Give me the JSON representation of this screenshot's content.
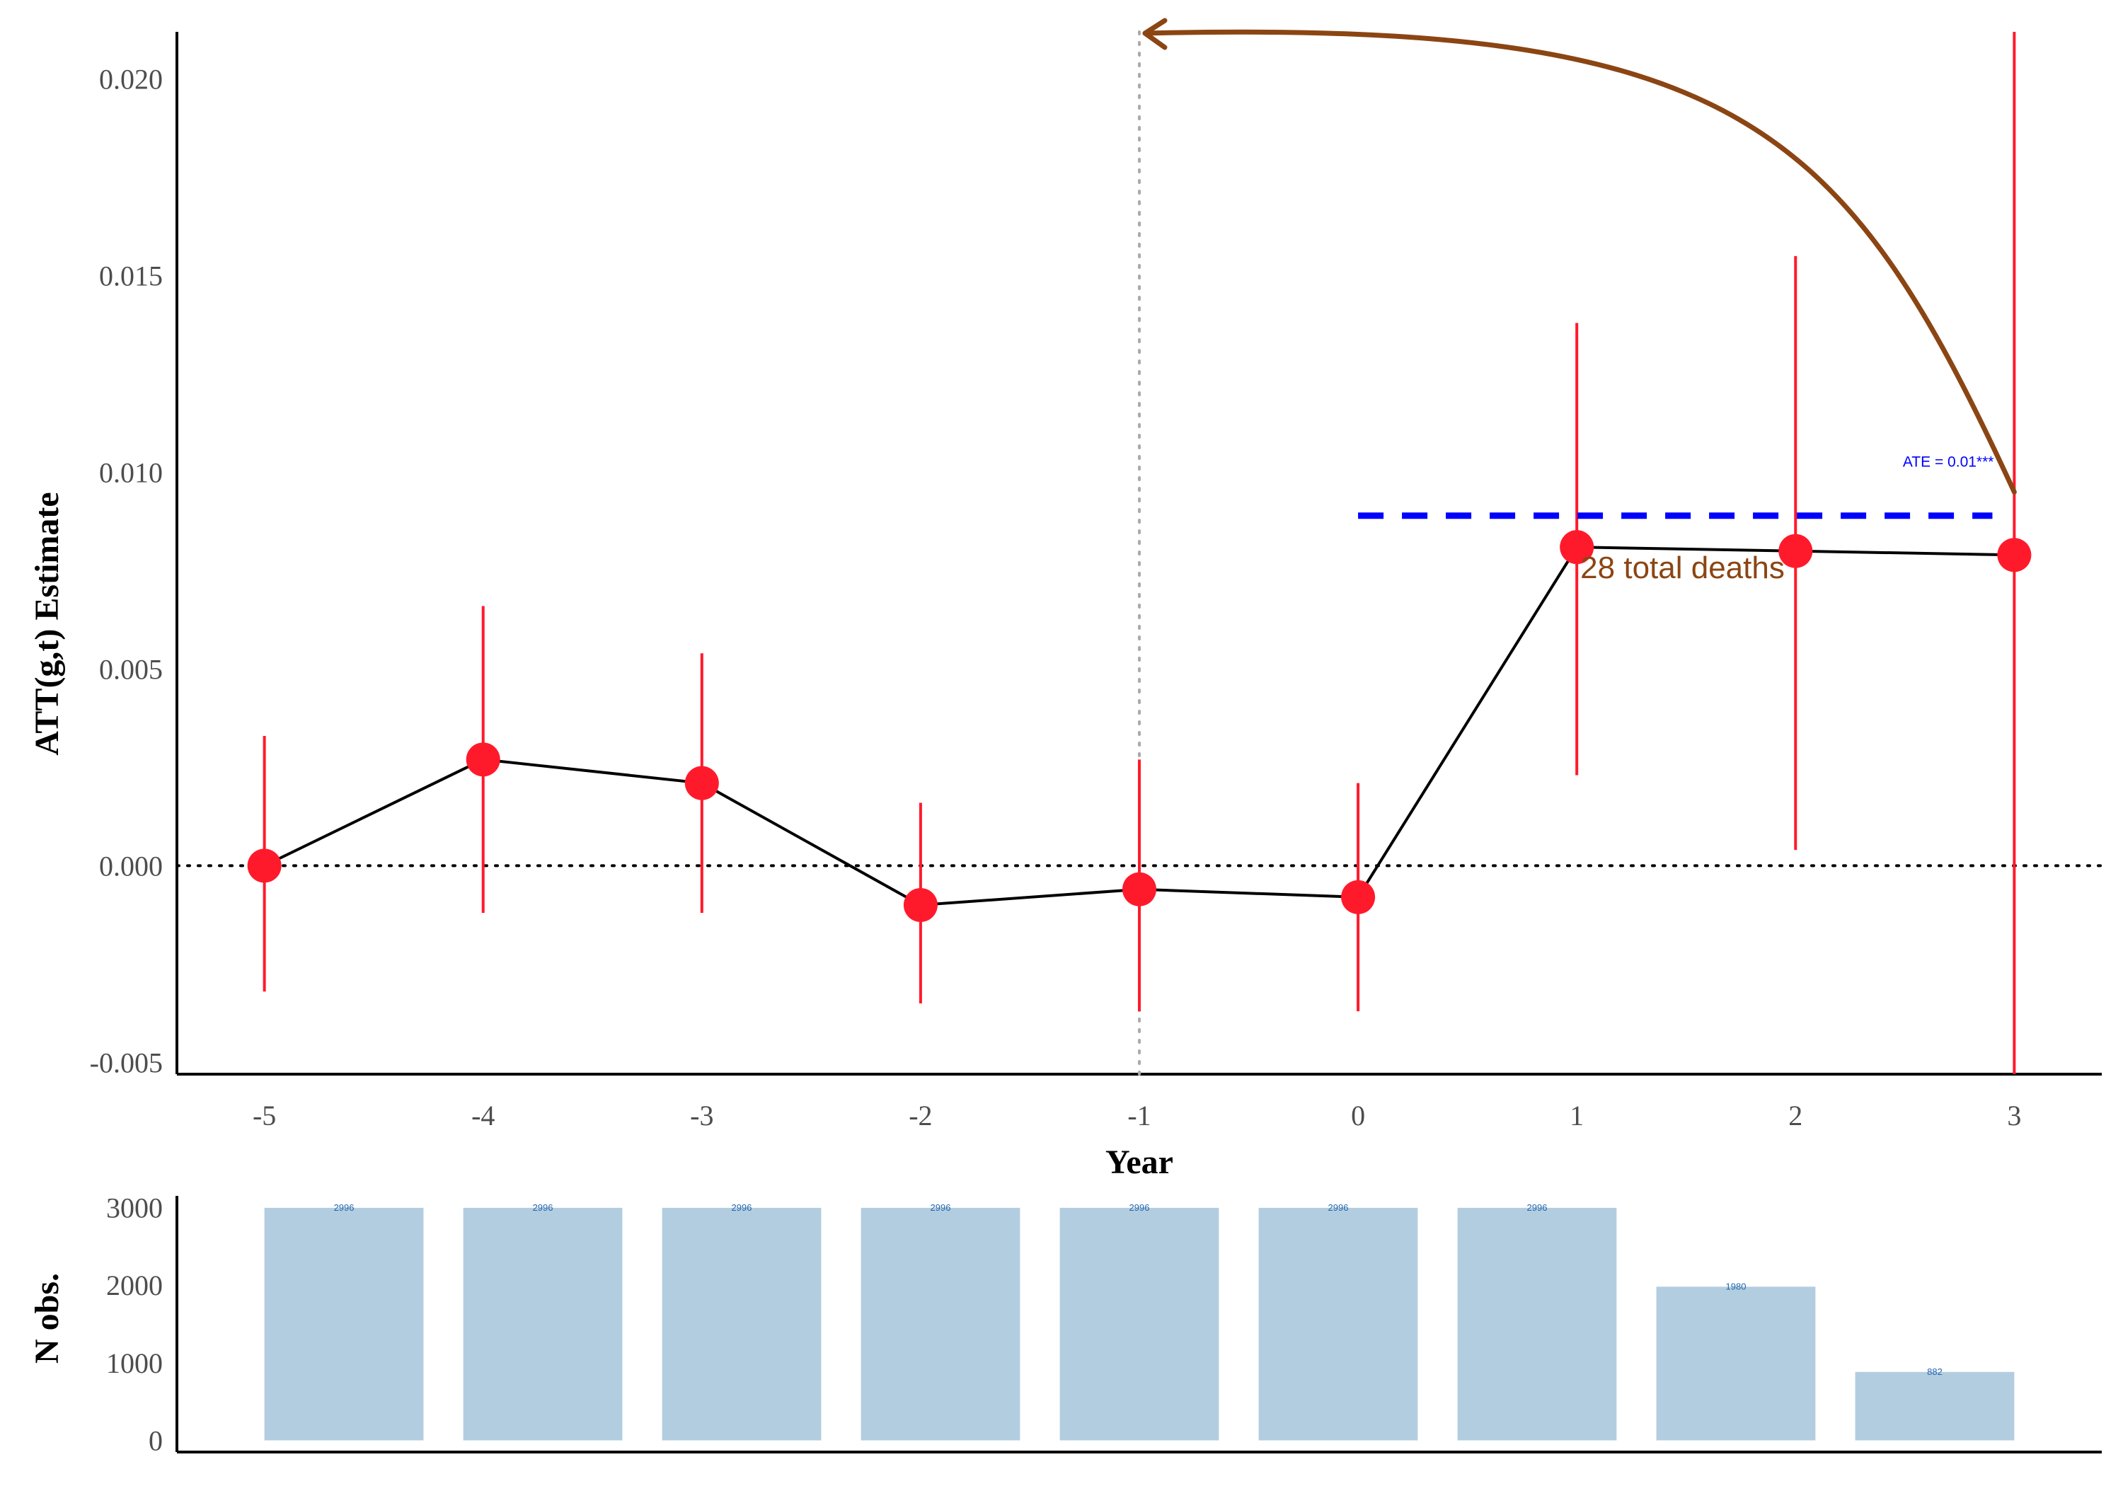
{
  "chart_data": [
    {
      "type": "line",
      "xlabel": "Year",
      "ylabel": "ATT(g,t) Estimate",
      "x": [
        -5,
        -4,
        -3,
        -2,
        -1,
        0,
        1,
        2,
        3
      ],
      "x_tick_labels": [
        "-5",
        "-4",
        "-3",
        "-2",
        "-1",
        "0",
        "1",
        "2",
        "3"
      ],
      "y_ticks": [
        -0.005,
        0.0,
        0.005,
        0.01,
        0.015,
        0.02
      ],
      "y_tick_labels": [
        "-0.005",
        "0.000",
        "0.005",
        "0.010",
        "0.015",
        "0.020"
      ],
      "ylim": [
        -0.0053,
        0.0212
      ],
      "xlim": [
        -5.4,
        3.4
      ],
      "grid": false,
      "series": [
        {
          "values": [
            0.0,
            0.0027,
            0.0021,
            -0.001,
            -0.0006,
            -0.0008,
            0.0081,
            0.008,
            0.0079
          ],
          "ci_lower": [
            -0.0032,
            -0.0012,
            -0.0012,
            -0.0035,
            -0.0037,
            -0.0037,
            0.0023,
            0.0004,
            -0.0053
          ],
          "ci_upper": [
            0.0033,
            0.0066,
            0.0054,
            0.0016,
            0.0027,
            0.0021,
            0.0138,
            0.0155,
            0.0212
          ],
          "color": "#ff1a2b",
          "line_color": "#000000"
        }
      ],
      "reference_lines": {
        "horizontal_y": 0.0,
        "vertical_x": -1,
        "horizontal_color": "#000000",
        "vertical_color": "#aaaaaa"
      },
      "ate": {
        "label": "ATE = 0.01***",
        "value": 0.0089,
        "x_start": 0,
        "x_end": 2.9,
        "color": "#0000ff"
      },
      "annotation": {
        "text": "28 total deaths",
        "x": 1,
        "y": 0.0076,
        "color": "#8b4513",
        "arrow_from": [
          3,
          0.0095
        ],
        "arrow_to": [
          -1,
          0.0212
        ]
      }
    },
    {
      "type": "bar",
      "ylabel": "N obs.",
      "categories": [
        "-5",
        "-4",
        "-3",
        "-2",
        "-1",
        "0",
        "1",
        "2",
        "3"
      ],
      "values": [
        2996,
        2996,
        2996,
        2996,
        2996,
        2996,
        2996,
        1980,
        882
      ],
      "value_labels": [
        "2996",
        "2996",
        "2996",
        "2996",
        "2996",
        "2996",
        "2996",
        "1980",
        "882"
      ],
      "y_ticks": [
        0,
        1000,
        2000,
        3000
      ],
      "y_tick_labels": [
        "0",
        "1000",
        "2000",
        "3000"
      ],
      "ylim": [
        -150,
        3150
      ],
      "bar_color": "#b3cde0",
      "label_color": "#2166ac"
    }
  ]
}
